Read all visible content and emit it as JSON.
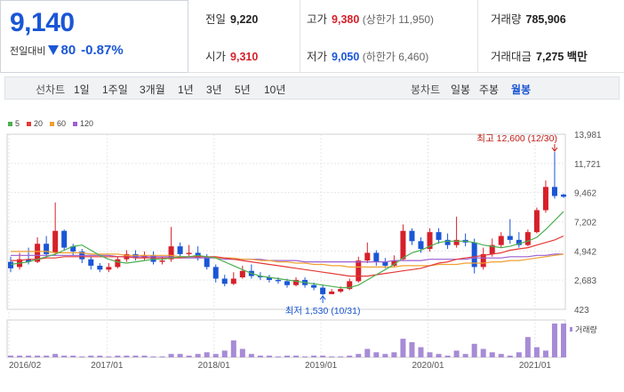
{
  "quote": {
    "price": "9,140",
    "change_label": "전일대비",
    "change_amount": "80",
    "change_percent": "-0.87%"
  },
  "stats": {
    "prev_close_label": "전일",
    "prev_close": "9,220",
    "open_label": "시가",
    "open": "9,310",
    "high_label": "고가",
    "high": "9,380",
    "upper_limit": "(상한가 11,950)",
    "low_label": "저가",
    "low": "9,050",
    "lower_limit": "(하한가 6,460)",
    "volume_label": "거래량",
    "volume": "785,906",
    "value_label": "거래대금",
    "value": "7,275",
    "value_unit": "백만"
  },
  "toolbar": {
    "line_chart_label": "선차트",
    "ranges": [
      "1일",
      "1주일",
      "3개월",
      "1년",
      "3년",
      "5년",
      "10년"
    ],
    "candle_label": "봉차트",
    "candle_periods": [
      "일봉",
      "주봉",
      "월봉"
    ],
    "active_candle": "월봉"
  },
  "colors": {
    "up": "#d6202a",
    "down": "#1a56d6",
    "ma5": "#4caf50",
    "ma20": "#e53935",
    "ma60": "#f0a030",
    "ma120": "#9c5fd0",
    "volume": "#a78bd6"
  },
  "chart_data": {
    "type": "candlestick",
    "legend": [
      "5",
      "20",
      "60",
      "120"
    ],
    "y_ticks": [
      "13,981",
      "11,721",
      "9,462",
      "7,202",
      "4,942",
      "2,683",
      "423"
    ],
    "ylim": [
      423,
      13981
    ],
    "x_ticks": [
      "2016/02",
      "2017/01",
      "2018/01",
      "2019/01",
      "2020/01",
      "2021/01"
    ],
    "volume_label": "거래량",
    "annotations": {
      "high": "최고 12,600 (12/30)",
      "low": "최저 1,530 (10/31)"
    },
    "candles": [
      [
        4100,
        3600,
        4500,
        3300
      ],
      [
        3700,
        4300,
        4800,
        3500
      ],
      [
        4300,
        4100,
        5200,
        3900
      ],
      [
        4100,
        5500,
        6000,
        4000
      ],
      [
        5500,
        4700,
        6100,
        4400
      ],
      [
        4800,
        6500,
        8700,
        4600
      ],
      [
        6500,
        5200,
        6600,
        5000
      ],
      [
        5300,
        4900,
        5500,
        4600
      ],
      [
        4900,
        4300,
        5100,
        4000
      ],
      [
        4300,
        3800,
        4500,
        3500
      ],
      [
        3800,
        3500,
        4000,
        3300
      ],
      [
        3500,
        3700,
        4000,
        3300
      ],
      [
        3700,
        4300,
        4500,
        3600
      ],
      [
        4300,
        4700,
        5000,
        4100
      ],
      [
        4700,
        4400,
        5000,
        4200
      ],
      [
        4400,
        4600,
        4900,
        4200
      ],
      [
        4600,
        4100,
        4900,
        3900
      ],
      [
        4100,
        4200,
        4500,
        3900
      ],
      [
        4300,
        5300,
        6800,
        4100
      ],
      [
        5300,
        4700,
        5600,
        4500
      ],
      [
        4700,
        4800,
        5400,
        4500
      ],
      [
        4800,
        4400,
        5300,
        4200
      ],
      [
        4500,
        3700,
        4700,
        3500
      ],
      [
        3700,
        2800,
        3900,
        2500
      ],
      [
        2800,
        2400,
        3100,
        2200
      ],
      [
        2400,
        2800,
        3300,
        2300
      ],
      [
        2900,
        3400,
        3800,
        2800
      ],
      [
        3400,
        3000,
        3900,
        2800
      ],
      [
        3000,
        2900,
        3300,
        2700
      ],
      [
        2900,
        2700,
        3100,
        2500
      ],
      [
        2700,
        2600,
        2900,
        2400
      ],
      [
        2600,
        2300,
        2800,
        2100
      ],
      [
        2300,
        2700,
        2900,
        2200
      ],
      [
        2700,
        2300,
        2900,
        2100
      ],
      [
        2300,
        2100,
        2500,
        1900
      ],
      [
        2100,
        1600,
        2300,
        1530
      ],
      [
        1600,
        1800,
        2000,
        1600
      ],
      [
        1800,
        2000,
        2200,
        1700
      ],
      [
        2000,
        2600,
        2800,
        1900
      ],
      [
        2600,
        4200,
        4500,
        2500
      ],
      [
        4200,
        4800,
        5600,
        4000
      ],
      [
        4800,
        4100,
        5000,
        3800
      ],
      [
        4100,
        3800,
        4400,
        3600
      ],
      [
        3800,
        4200,
        4600,
        3700
      ],
      [
        4300,
        6500,
        7000,
        4200
      ],
      [
        6500,
        5700,
        6700,
        5400
      ],
      [
        5700,
        5100,
        6000,
        4800
      ],
      [
        5100,
        6400,
        6700,
        4900
      ],
      [
        6400,
        5800,
        6700,
        5500
      ],
      [
        5800,
        5400,
        6300,
        5100
      ],
      [
        5400,
        5800,
        7600,
        5200
      ],
      [
        5800,
        5600,
        6300,
        5300
      ],
      [
        5600,
        3700,
        5900,
        3200
      ],
      [
        3700,
        4700,
        5200,
        3500
      ],
      [
        4700,
        5400,
        5900,
        4500
      ],
      [
        5400,
        6100,
        6400,
        5200
      ],
      [
        6100,
        5800,
        7400,
        5500
      ],
      [
        5800,
        5400,
        6400,
        5200
      ],
      [
        5400,
        6400,
        6600,
        5300
      ],
      [
        6400,
        8100,
        8300,
        6300
      ],
      [
        8100,
        9900,
        10400,
        7900
      ],
      [
        9900,
        9200,
        12600,
        9000
      ],
      [
        9310,
        9140,
        9380,
        9050
      ]
    ],
    "ma5": [
      3900,
      4000,
      4100,
      4300,
      4500,
      4700,
      5000,
      5300,
      5400,
      5000,
      4600,
      4300,
      4100,
      4000,
      4100,
      4200,
      4300,
      4300,
      4400,
      4500,
      4500,
      4600,
      4500,
      4400,
      4100,
      3800,
      3500,
      3200,
      3000,
      2900,
      2800,
      2700,
      2600,
      2500,
      2400,
      2300,
      2200,
      2100,
      2100,
      2300,
      2700,
      3100,
      3500,
      3900,
      4400,
      4800,
      5000,
      5300,
      5600,
      5700,
      5700,
      5700,
      5600,
      5400,
      5300,
      5200,
      5300,
      5500,
      5700,
      6000,
      6600,
      7300,
      8000
    ],
    "ma20": [
      4200,
      4200,
      4300,
      4300,
      4400,
      4400,
      4500,
      4500,
      4500,
      4500,
      4500,
      4500,
      4500,
      4500,
      4400,
      4400,
      4400,
      4400,
      4400,
      4400,
      4500,
      4500,
      4500,
      4500,
      4400,
      4300,
      4200,
      4100,
      4000,
      3900,
      3800,
      3700,
      3600,
      3500,
      3400,
      3300,
      3200,
      3100,
      3000,
      3000,
      3000,
      3100,
      3200,
      3300,
      3400,
      3500,
      3600,
      3800,
      4000,
      4100,
      4300,
      4400,
      4500,
      4600,
      4700,
      4800,
      5000,
      5100,
      5200,
      5400,
      5600,
      5800,
      6100
    ],
    "ma60": [
      4900,
      4900,
      4900,
      4900,
      4900,
      4800,
      4800,
      4800,
      4800,
      4700,
      4700,
      4700,
      4700,
      4600,
      4600,
      4600,
      4600,
      4600,
      4600,
      4500,
      4500,
      4500,
      4500,
      4400,
      4400,
      4400,
      4300,
      4300,
      4200,
      4200,
      4100,
      4100,
      4000,
      4000,
      3900,
      3900,
      3800,
      3800,
      3700,
      3700,
      3700,
      3700,
      3700,
      3700,
      3800,
      3800,
      3800,
      3800,
      3900,
      3900,
      3900,
      4000,
      4000,
      4000,
      4100,
      4100,
      4200,
      4200,
      4300,
      4400,
      4500,
      4600,
      4700
    ],
    "ma120": [
      4600,
      4600,
      4600,
      4600,
      4600,
      4600,
      4600,
      4600,
      4600,
      4600,
      4600,
      4600,
      4500,
      4500,
      4500,
      4500,
      4500,
      4500,
      4500,
      4400,
      4400,
      4400,
      4400,
      4400,
      4300,
      4300,
      4300,
      4300,
      4300,
      4200,
      4200,
      4200,
      4200,
      4100,
      4100,
      4100,
      4100,
      4100,
      4100,
      4100,
      4100,
      4100,
      4100,
      4200,
      4200,
      4200,
      4200,
      4300,
      4300,
      4300,
      4300,
      4300,
      4400,
      4400,
      4400,
      4400,
      4500,
      4500,
      4500,
      4600,
      4600,
      4700,
      4700
    ],
    "volume": [
      1,
      1,
      1,
      1,
      1,
      2,
      1,
      1,
      0.5,
      1,
      1,
      0.5,
      1,
      1,
      1,
      1,
      0.5,
      0.5,
      2,
      2,
      1,
      2,
      3,
      2,
      4,
      10,
      5,
      2,
      1,
      1,
      0.5,
      1,
      1,
      0.5,
      1,
      1,
      0.5,
      0.5,
      1,
      2,
      5,
      3,
      2,
      3,
      11,
      9,
      6,
      3,
      2,
      1,
      4,
      2,
      8,
      5,
      3,
      2,
      1,
      3,
      12,
      6,
      4,
      20,
      20
    ]
  }
}
